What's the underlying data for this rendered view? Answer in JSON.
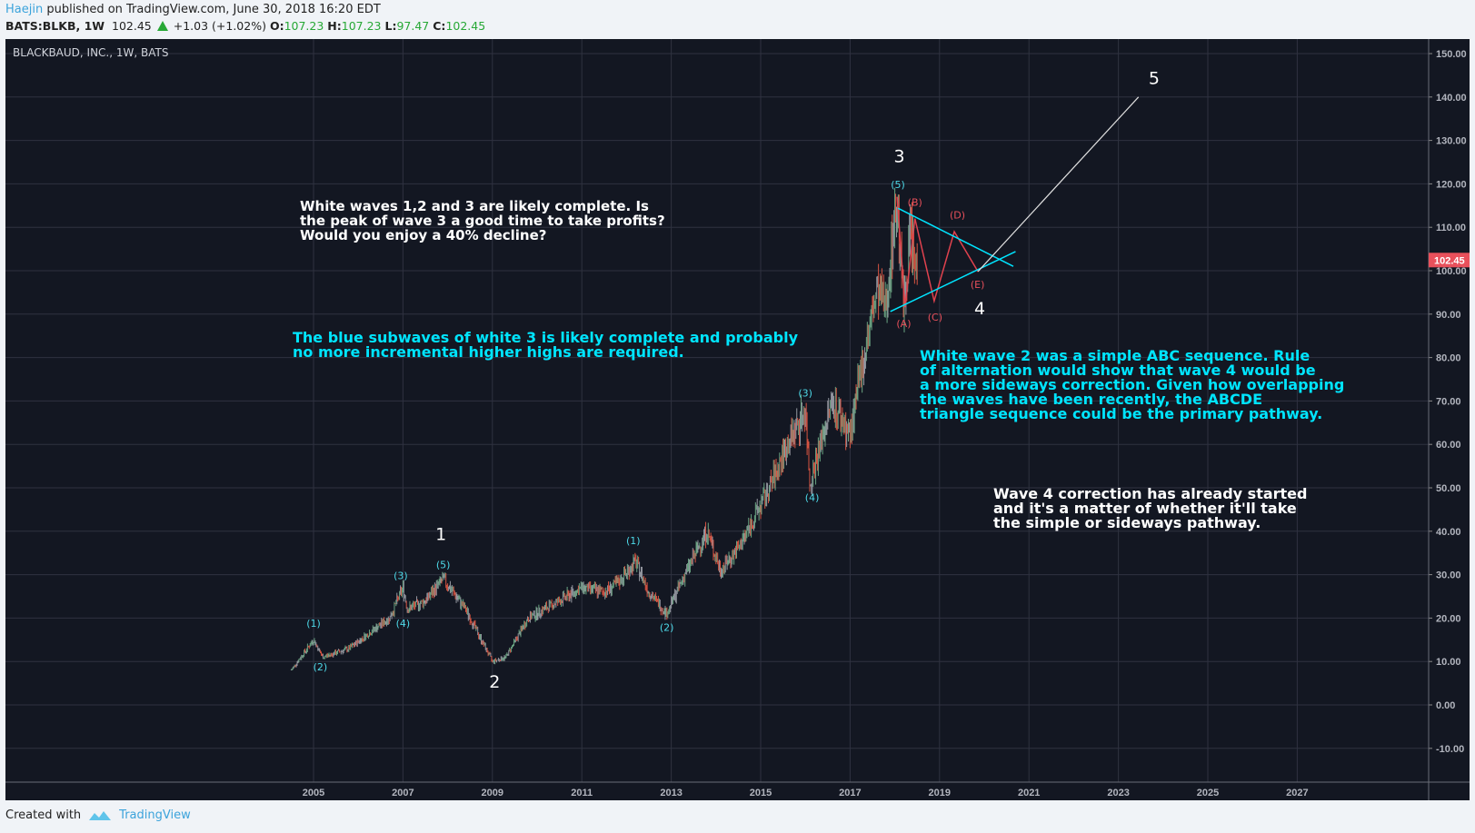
{
  "header": {
    "user": "Haejin",
    "published": "published on TradingView.com, June 30, 2018 16:20 EDT",
    "symbol": "BATS:BLKB, 1W",
    "last": "102.45",
    "change": "+1.03 (+1.02%)",
    "o_label": "O:",
    "o": "107.23",
    "h_label": "H:",
    "h": "107.23",
    "l_label": "L:",
    "l": "97.47",
    "c_label": "C:",
    "c": "102.45"
  },
  "footer": {
    "created_with": "Created with",
    "brand": "TradingView"
  },
  "colors": {
    "bg": "#131722",
    "grid": "#2f3240",
    "up": "#6ba583",
    "down": "#d75442",
    "cyan": "#00e5ff",
    "red": "#e0424e",
    "label": "#e8505b"
  },
  "notes": [
    {
      "text": "White waves 1,2 and 3 are likely complete. Is\nthe peak of wave 3 a good time to take profits?\nWould you enjoy a 40% decline?",
      "color": "#ffffff"
    },
    {
      "text": "The blue subwaves of white 3 is likely complete and probably\nno more incremental higher highs are required.",
      "color": "#00e5ff"
    },
    {
      "text": "White wave 2 was a simple ABC sequence. Rule\nof alternation would show that wave 4 would be\na more sideways correction. Given how overlapping\nthe waves have been recently, the ABCDE\ntriangle sequence could be the primary pathway.",
      "color": "#00e5ff"
    },
    {
      "text": "Wave 4 correction has already started\nand it's a matter of whether it'll take\nthe simple or sideways pathway.",
      "color": "#ffffff"
    }
  ],
  "chart_data": {
    "type": "candlestick",
    "title": "BLACKBAUD, INC., 1W, BATS",
    "ylim": [
      -15,
      165
    ],
    "y_ticks": [
      "150.00",
      "140.00",
      "130.00",
      "120.00",
      "110.00",
      "100.00",
      "90.00",
      "80.00",
      "70.00",
      "60.00",
      "50.00",
      "40.00",
      "30.00",
      "20.00",
      "10.00",
      "0.00",
      "-10.00"
    ],
    "x_ticks": [
      "2005",
      "2007",
      "2009",
      "2011",
      "2013",
      "2015",
      "2017",
      "2019",
      "2021",
      "2023",
      "2025",
      "2027"
    ],
    "last_price": "102.45",
    "price_path": [
      [
        2004.5,
        8
      ],
      [
        2005.0,
        15
      ],
      [
        2005.2,
        11
      ],
      [
        2005.8,
        13
      ],
      [
        2006.3,
        17
      ],
      [
        2006.7,
        20
      ],
      [
        2007.0,
        27
      ],
      [
        2007.1,
        22
      ],
      [
        2007.5,
        24
      ],
      [
        2007.9,
        29
      ],
      [
        2008.4,
        22
      ],
      [
        2008.8,
        14
      ],
      [
        2009.0,
        10
      ],
      [
        2009.3,
        11
      ],
      [
        2009.8,
        20
      ],
      [
        2010.5,
        24
      ],
      [
        2011.0,
        27
      ],
      [
        2011.5,
        26
      ],
      [
        2011.8,
        28
      ],
      [
        2012.2,
        33
      ],
      [
        2012.5,
        26
      ],
      [
        2012.9,
        21
      ],
      [
        2013.3,
        30
      ],
      [
        2013.8,
        40
      ],
      [
        2014.1,
        31
      ],
      [
        2014.5,
        36
      ],
      [
        2015.2,
        50
      ],
      [
        2015.6,
        60
      ],
      [
        2016.0,
        68
      ],
      [
        2016.1,
        51
      ],
      [
        2016.6,
        70
      ],
      [
        2017.0,
        62
      ],
      [
        2017.3,
        80
      ],
      [
        2017.6,
        95
      ],
      [
        2017.8,
        92
      ],
      [
        2018.05,
        117
      ],
      [
        2018.2,
        91
      ],
      [
        2018.35,
        110
      ],
      [
        2018.45,
        100
      ],
      [
        2018.5,
        102.45
      ]
    ],
    "wave_labels": [
      {
        "text": "1",
        "color": "white",
        "date": 2007.85,
        "price": 38,
        "size": "big"
      },
      {
        "text": "2",
        "color": "white",
        "date": 2009.05,
        "price": 4,
        "size": "big"
      },
      {
        "text": "3",
        "color": "white",
        "date": 2018.1,
        "price": 125,
        "size": "big"
      },
      {
        "text": "4",
        "color": "white",
        "date": 2019.9,
        "price": 90,
        "size": "big"
      },
      {
        "text": "5",
        "color": "white",
        "date": 2023.8,
        "price": 143,
        "size": "big"
      },
      {
        "text": "(1)",
        "color": "cyan",
        "date": 2005.0,
        "price": 18
      },
      {
        "text": "(2)",
        "color": "cyan",
        "date": 2005.15,
        "price": 8
      },
      {
        "text": "(3)",
        "color": "cyan",
        "date": 2006.95,
        "price": 29
      },
      {
        "text": "(4)",
        "color": "cyan",
        "date": 2007.0,
        "price": 18
      },
      {
        "text": "(5)",
        "color": "cyan",
        "date": 2007.9,
        "price": 31.5
      },
      {
        "text": "(1)",
        "color": "cyan",
        "date": 2012.15,
        "price": 37
      },
      {
        "text": "(2)",
        "color": "cyan",
        "date": 2012.9,
        "price": 17
      },
      {
        "text": "(3)",
        "color": "cyan",
        "date": 2016.0,
        "price": 71
      },
      {
        "text": "(4)",
        "color": "cyan",
        "date": 2016.15,
        "price": 47
      },
      {
        "text": "(5)",
        "color": "cyan",
        "date": 2018.07,
        "price": 119
      },
      {
        "text": "(A)",
        "color": "red",
        "date": 2018.2,
        "price": 87
      },
      {
        "text": "(B)",
        "color": "red",
        "date": 2018.45,
        "price": 115
      },
      {
        "text": "(C)",
        "color": "red",
        "date": 2018.9,
        "price": 88.5
      },
      {
        "text": "(D)",
        "color": "red",
        "date": 2019.4,
        "price": 112
      },
      {
        "text": "(E)",
        "color": "red",
        "date": 2019.85,
        "price": 96
      }
    ],
    "abcde_path": [
      [
        2018.05,
        117
      ],
      [
        2018.23,
        91.6
      ],
      [
        2018.45,
        112
      ],
      [
        2018.88,
        93
      ],
      [
        2019.33,
        109
      ],
      [
        2019.86,
        99.8
      ]
    ],
    "triangle_upper": [
      [
        2018.07,
        114.4
      ],
      [
        2020.65,
        101
      ]
    ],
    "triangle_lower": [
      [
        2017.9,
        90.6
      ],
      [
        2020.7,
        104.4
      ]
    ],
    "projection_line": [
      [
        2019.86,
        99.8
      ],
      [
        2023.45,
        140
      ]
    ]
  }
}
